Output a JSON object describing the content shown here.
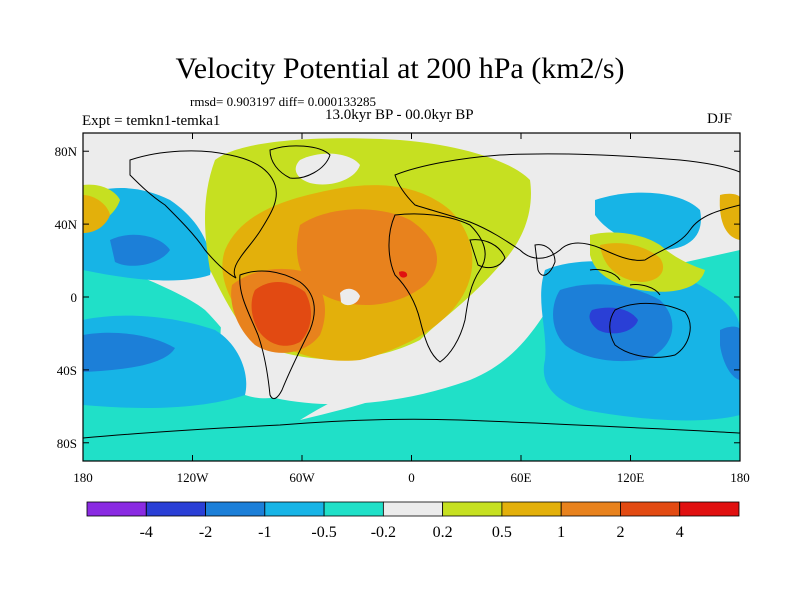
{
  "title": "Velocity Potential at 200 hPa (km2/s)",
  "stats": "rmsd= 0.903197 diff= 0.000133285",
  "experiment": "Expt = temkn1-temka1",
  "period": "13.0kyr BP - 00.0kyr BP",
  "season": "DJF",
  "axes": {
    "x_ticks": [
      "180",
      "120W",
      "60W",
      "0",
      "60E",
      "120E",
      "180"
    ],
    "y_ticks": [
      "80N",
      "40N",
      "0",
      "40S",
      "80S"
    ]
  },
  "colorbar": {
    "colors": [
      "#8a2be2",
      "#2a3fd6",
      "#1c7fd8",
      "#17b4e6",
      "#20e0c8",
      "#ececec",
      "#c6e021",
      "#e3b00b",
      "#e8821d",
      "#e24a12",
      "#e01010"
    ],
    "labels": [
      "-4",
      "-2",
      "-1",
      "-0.5",
      "-0.2",
      "0.2",
      "0.5",
      "1",
      "2",
      "4"
    ]
  }
}
